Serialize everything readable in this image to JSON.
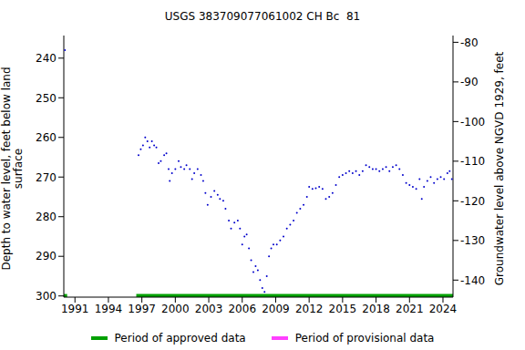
{
  "chart_data": {
    "type": "scatter",
    "title": "USGS 383709077061002 CH Bc  81",
    "y_label": "Depth to water level, feet below land surface",
    "y2_label": "Groundwater level above NGVD 1929, feet",
    "color": "#0000cc",
    "marker": "dot",
    "grid": false,
    "legend": "bottom",
    "x": [
      1990.1,
      1996.7,
      1996.9,
      1997.1,
      1997.3,
      1997.5,
      1997.7,
      1997.9,
      1998.1,
      1998.3,
      1998.5,
      1998.7,
      1999.0,
      1999.2,
      1999.4,
      1999.5,
      1999.7,
      2000.0,
      2000.3,
      2000.5,
      2000.8,
      2001.0,
      2001.3,
      2001.5,
      2001.7,
      2002.0,
      2002.3,
      2002.5,
      2002.7,
      2002.9,
      2003.2,
      2003.5,
      2003.8,
      2004.0,
      2004.3,
      2004.5,
      2004.8,
      2005.0,
      2005.3,
      2005.6,
      2005.8,
      2006.0,
      2006.2,
      2006.4,
      2006.6,
      2006.8,
      2007.0,
      2007.2,
      2007.4,
      2007.6,
      2007.8,
      2008.0,
      2008.2,
      2008.4,
      2008.6,
      2008.8,
      2009.1,
      2009.4,
      2009.7,
      2010.0,
      2010.3,
      2010.6,
      2010.9,
      2011.2,
      2011.5,
      2011.8,
      2012.0,
      2012.3,
      2012.6,
      2012.9,
      2013.2,
      2013.5,
      2013.8,
      2014.1,
      2014.4,
      2014.7,
      2015.0,
      2015.3,
      2015.6,
      2015.9,
      2016.2,
      2016.5,
      2016.8,
      2017.1,
      2017.4,
      2017.7,
      2018.0,
      2018.3,
      2018.6,
      2018.9,
      2019.2,
      2019.5,
      2019.8,
      2020.1,
      2020.4,
      2020.7,
      2021.0,
      2021.3,
      2021.6,
      2021.9,
      2022.1,
      2022.3,
      2022.6,
      2022.9,
      2023.2,
      2023.5,
      2023.8,
      2024.1,
      2024.4,
      2024.6,
      2024.8
    ],
    "values": [
      238,
      264.5,
      263,
      262,
      260,
      261,
      262.5,
      261,
      262,
      262.5,
      266.5,
      266,
      264.5,
      264,
      268,
      271,
      269,
      268,
      266,
      267.5,
      268,
      267,
      268,
      270.5,
      269,
      268,
      269.5,
      271,
      274,
      277,
      275,
      273.5,
      274.5,
      275.5,
      276,
      278,
      281,
      283,
      281.5,
      281,
      283,
      287,
      285,
      284.5,
      288,
      291,
      294,
      292.5,
      293.5,
      296,
      298,
      299,
      295,
      290,
      288,
      287,
      287,
      286,
      285,
      283,
      282,
      281,
      279,
      278,
      277,
      275,
      272.5,
      273,
      272.8,
      272.5,
      273,
      275.5,
      275,
      274,
      272,
      270,
      269.5,
      269,
      268.5,
      269,
      268.5,
      269.5,
      268.5,
      267,
      267.5,
      268,
      268,
      268.5,
      268,
      267.5,
      268.5,
      267.5,
      267,
      268,
      269.5,
      271.5,
      272,
      272.5,
      273,
      270.5,
      275.5,
      272.5,
      271,
      270,
      271.5,
      270.5,
      270,
      270.5,
      269,
      268.5,
      270.5
    ],
    "xlim": [
      1990,
      2024.9
    ],
    "xticks": [
      1991,
      1994,
      1997,
      2000,
      2003,
      2006,
      2009,
      2012,
      2015,
      2018,
      2021,
      2024
    ],
    "ylim": [
      234.3,
      300.3
    ],
    "yticks": [
      240,
      250,
      260,
      270,
      280,
      290,
      300
    ],
    "y2lim": [
      -144.3,
      -78.3
    ],
    "y2ticks": [
      -80,
      -90,
      -100,
      -110,
      -120,
      -130,
      -140
    ],
    "periods": [
      {
        "name": "Period of approved data",
        "color": "#00a000",
        "ranges": [
          [
            1990,
            1990.3
          ],
          [
            1996.5,
            2024.9
          ]
        ]
      },
      {
        "name": "Period of provisional data",
        "color": "#ff40ff",
        "ranges": []
      }
    ]
  }
}
